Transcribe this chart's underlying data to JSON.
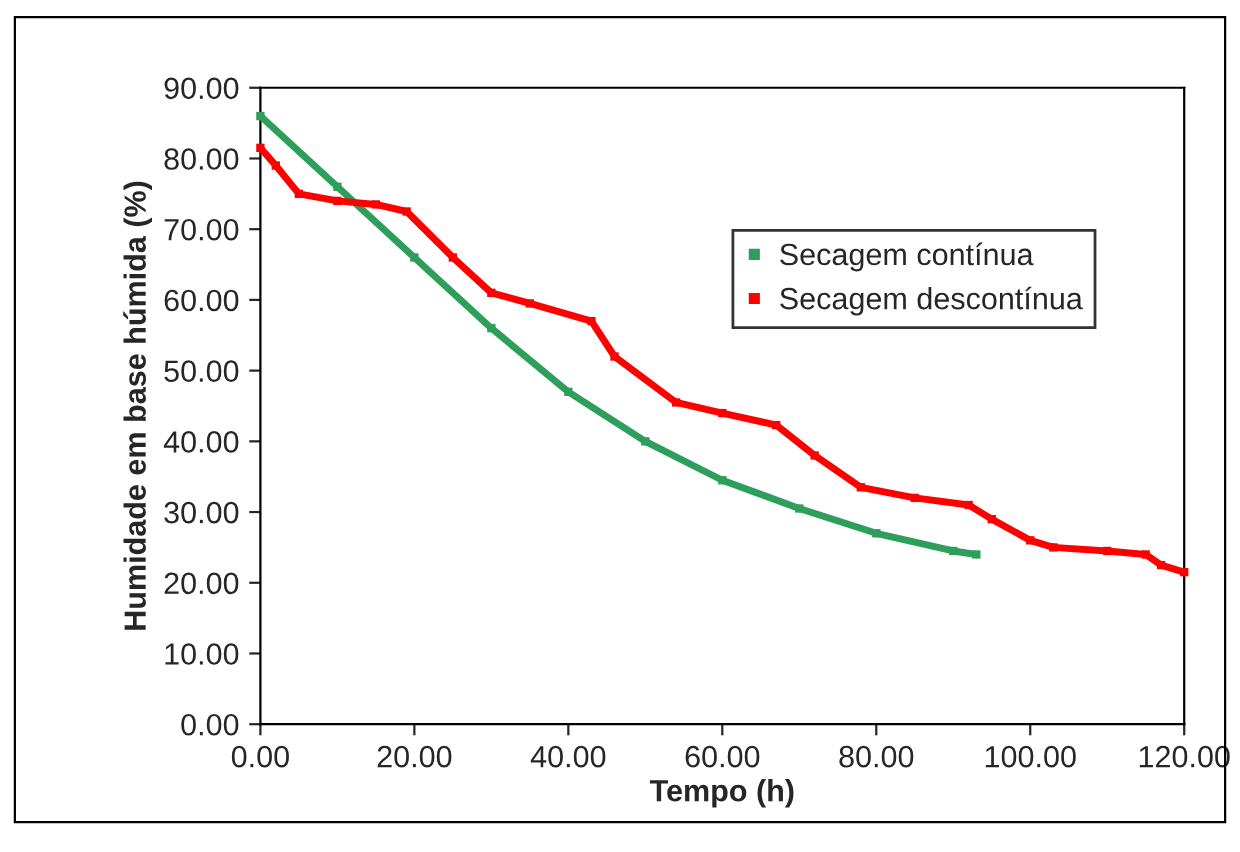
{
  "chart_data": {
    "type": "line",
    "xlabel": "Tempo (h)",
    "ylabel": "Humidade em base húmida (%)",
    "xlim": [
      0,
      120
    ],
    "ylim": [
      0,
      90
    ],
    "xticks": [
      {
        "value": 0,
        "label": "0.00"
      },
      {
        "value": 20,
        "label": "20.00"
      },
      {
        "value": 40,
        "label": "40.00"
      },
      {
        "value": 60,
        "label": "60.00"
      },
      {
        "value": 80,
        "label": "80.00"
      },
      {
        "value": 100,
        "label": "100.00"
      },
      {
        "value": 120,
        "label": "120.00"
      }
    ],
    "yticks": [
      {
        "value": 0,
        "label": "0.00"
      },
      {
        "value": 10,
        "label": "10.00"
      },
      {
        "value": 20,
        "label": "20.00"
      },
      {
        "value": 30,
        "label": "30.00"
      },
      {
        "value": 40,
        "label": "40.00"
      },
      {
        "value": 50,
        "label": "50.00"
      },
      {
        "value": 60,
        "label": "60.00"
      },
      {
        "value": 70,
        "label": "70.00"
      },
      {
        "value": 80,
        "label": "80.00"
      },
      {
        "value": 90,
        "label": "90.00"
      }
    ],
    "grid": false,
    "legend": "top right",
    "marker": "square",
    "line_style": "solid",
    "series": [
      {
        "name": "Secagem contínua",
        "color": "#2e9e5b",
        "x": [
          0,
          10,
          20,
          30,
          40,
          50,
          60,
          70,
          80,
          90,
          93
        ],
        "values": [
          86,
          76,
          66,
          56,
          47,
          40,
          34.5,
          30.5,
          27,
          24.5,
          24
        ]
      },
      {
        "name": "Secagem descontínua",
        "color": "#ff0000",
        "x": [
          0,
          2,
          5,
          10,
          15,
          19,
          25,
          30,
          35,
          43,
          46,
          54,
          60,
          67,
          72,
          78,
          85,
          92,
          95,
          100,
          103,
          110,
          115,
          117,
          120
        ],
        "values": [
          81.5,
          79,
          75,
          74,
          73.5,
          72.5,
          66,
          61,
          59.5,
          57,
          52,
          45.5,
          44,
          42.3,
          38,
          33.5,
          32,
          31,
          29,
          26,
          25,
          24.5,
          24,
          22.5,
          21.5
        ]
      }
    ]
  }
}
